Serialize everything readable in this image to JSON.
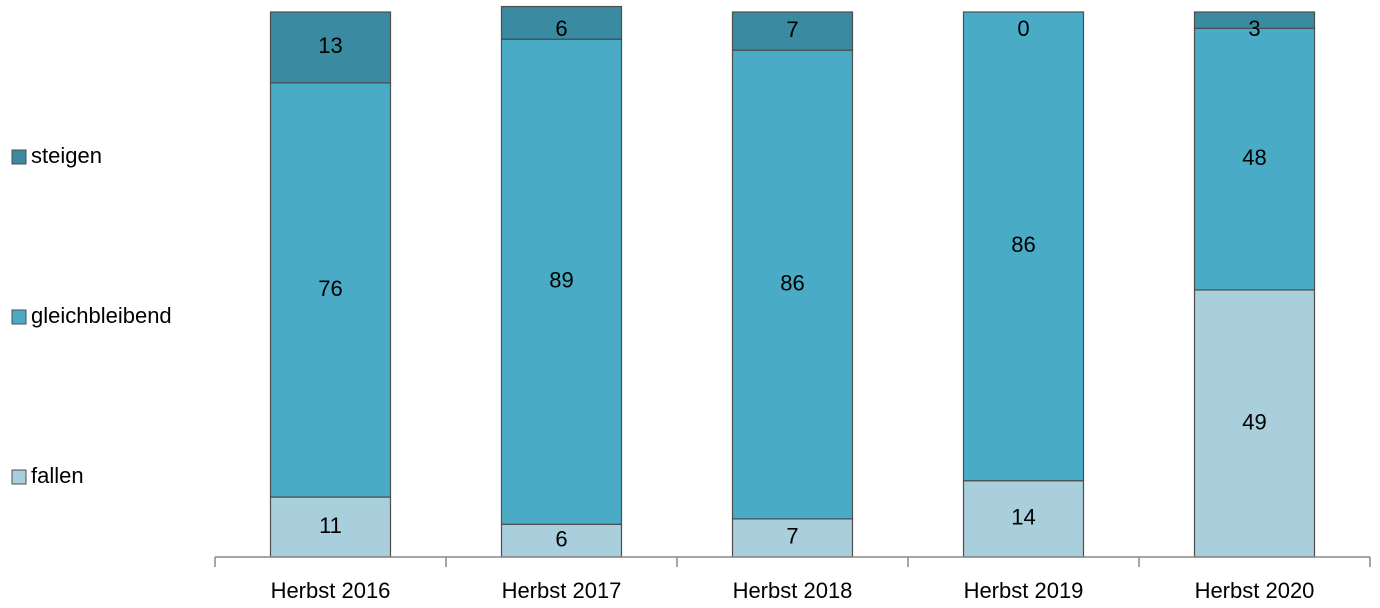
{
  "chart_data": {
    "type": "stacked_bar",
    "categories": [
      "Herbst 2016",
      "Herbst 2017",
      "Herbst 2018",
      "Herbst 2019",
      "Herbst 2020"
    ],
    "series": [
      {
        "name": "fallen",
        "color": "#a9cfdd",
        "values": [
          11,
          6,
          7,
          14,
          49
        ]
      },
      {
        "name": "gleichbleibend",
        "color": "#4aabc6",
        "values": [
          76,
          89,
          86,
          86,
          48
        ]
      },
      {
        "name": "steigen",
        "color": "#3a8aa1",
        "values": [
          13,
          6,
          7,
          0,
          3
        ]
      }
    ],
    "ylim": [
      0,
      100
    ],
    "legend": "left"
  }
}
